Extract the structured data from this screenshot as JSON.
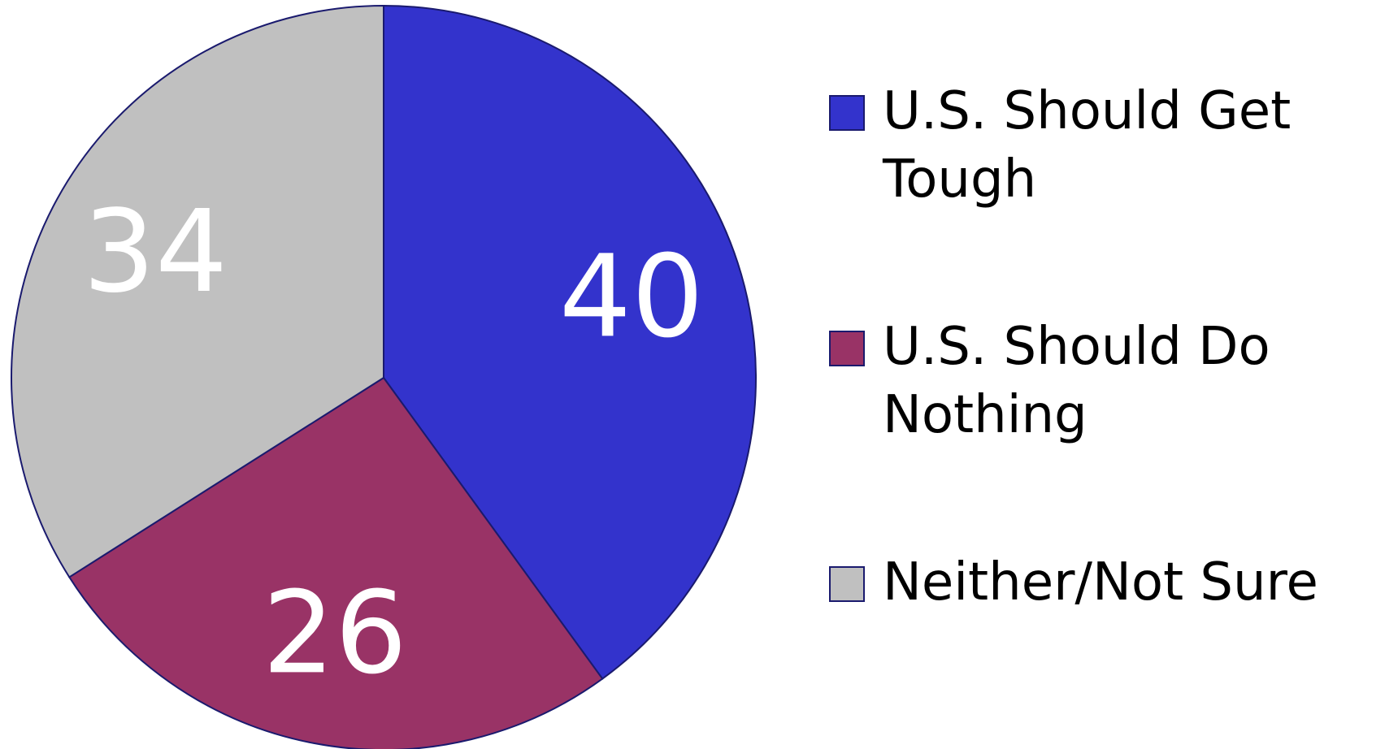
{
  "chart_data": {
    "type": "pie",
    "categories": [
      "U.S. Should Get Tough",
      "U.S. Should Do Nothing",
      "Neither/Not Sure"
    ],
    "values": [
      40,
      26,
      34
    ],
    "colors": [
      "#3333cc",
      "#993366",
      "#c0c0c0"
    ],
    "legend": "right"
  }
}
